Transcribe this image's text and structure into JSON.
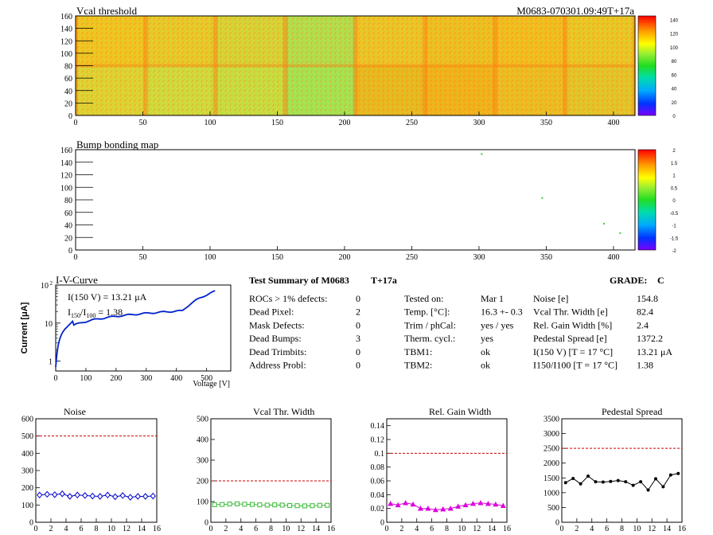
{
  "header": {
    "vcal_title": "Vcal threshold",
    "module_id": "M0683-070301.09:49T+17a",
    "bump_title": "Bump bonding map"
  },
  "maps": {
    "x_ticks": [
      "0",
      "50",
      "100",
      "150",
      "200",
      "250",
      "300",
      "350",
      "400"
    ],
    "y_ticks": [
      "0",
      "20",
      "40",
      "60",
      "80",
      "100",
      "120",
      "140",
      "160"
    ],
    "vcal_palette_ticks": [
      "0",
      "20",
      "40",
      "60",
      "80",
      "100",
      "120",
      "140"
    ],
    "bump_palette_ticks": [
      "-2",
      "-1.5",
      "-1",
      "-0.5",
      "0",
      "0.5",
      "1",
      "1.5",
      "2"
    ],
    "roc_fills_top_row": [
      "#f2c625",
      "#eacb2d",
      "#d9d43a",
      "#b3e050",
      "#eec62a",
      "#f0c024",
      "#f4be22",
      "#ecc828"
    ],
    "roc_fills_bottom_row": [
      "#e0d437",
      "#d2dc40",
      "#c9df44",
      "#a4e556",
      "#eaba22",
      "#f3b31d",
      "#efbd25",
      "#e6c52c"
    ],
    "bump_points": [
      {
        "x": 302,
        "y": 153
      },
      {
        "x": 347,
        "y": 83
      },
      {
        "x": 393,
        "y": 42
      },
      {
        "x": 405,
        "y": 27
      }
    ]
  },
  "iv": {
    "title": "I-V-Curve",
    "ylabel": "Current [μA]",
    "xlabel": "Voltage [V]",
    "annotation_1": "I(150 V) = 13.21 μA",
    "annotation_2_pre": "I",
    "annotation_2_sub1": "150",
    "annotation_2_mid": "/I",
    "annotation_2_sub2": "100",
    "annotation_2_post": " =  1.38",
    "x_ticks": [
      "0",
      "100",
      "200",
      "300",
      "400",
      "500"
    ],
    "y_ticks": [
      "1",
      "10",
      "10"
    ],
    "y_top_exp": "2"
  },
  "summary": {
    "title": "Test Summary of M0683",
    "temp_tag": "T+17a",
    "grade_label": "GRADE:",
    "grade": "C",
    "col1": [
      {
        "label": "ROCs > 1% defects:",
        "value": "0"
      },
      {
        "label": "Dead Pixel:",
        "value": "2"
      },
      {
        "label": "Mask Defects:",
        "value": "0"
      },
      {
        "label": "Dead Bumps:",
        "value": "3"
      },
      {
        "label": "Dead Trimbits:",
        "value": "0"
      },
      {
        "label": "Address Probl:",
        "value": "0"
      }
    ],
    "col2": [
      {
        "label": "Tested on:",
        "value": "Mar 1"
      },
      {
        "label": "Temp. [°C]:",
        "value": "16.3 +- 0.3"
      },
      {
        "label": "Trim / phCal:",
        "value": "yes / yes"
      },
      {
        "label": "Therm. cycl.:",
        "value": "yes"
      },
      {
        "label": "TBM1:",
        "value": "ok"
      },
      {
        "label": "TBM2:",
        "value": "ok"
      }
    ],
    "col3": [
      {
        "label": "Noise [e]",
        "value": "154.8"
      },
      {
        "label": "Vcal Thr. Width [e]",
        "value": "82.4"
      },
      {
        "label": "Rel. Gain Width [%]",
        "value": "2.4"
      },
      {
        "label": "Pedestal Spread [e]",
        "value": "1372.2"
      },
      {
        "label": "I(150 V) [T = 17 °C]",
        "value": "13.21 μA"
      },
      {
        "label": "I150/I100  [T = 17 °C]",
        "value": "1.38"
      }
    ]
  },
  "chart_data": [
    {
      "type": "line",
      "title": "Noise",
      "x": [
        0,
        1,
        2,
        3,
        4,
        5,
        6,
        7,
        8,
        9,
        10,
        11,
        12,
        13,
        14,
        15
      ],
      "values": [
        158,
        162,
        160,
        165,
        150,
        158,
        155,
        152,
        150,
        158,
        148,
        155,
        145,
        150,
        150,
        152
      ],
      "ylim": [
        0,
        600
      ],
      "xlim": [
        0,
        16
      ],
      "y_ticks": [
        "0",
        "100",
        "200",
        "300",
        "400",
        "500",
        "600"
      ],
      "x_ticks": [
        "0",
        "2",
        "4",
        "6",
        "8",
        "10",
        "12",
        "14",
        "16"
      ],
      "limit_line": 500,
      "color": "#0000cc",
      "marker": "diamond"
    },
    {
      "type": "line",
      "title": "Vcal Thr. Width",
      "x": [
        0,
        1,
        2,
        3,
        4,
        5,
        6,
        7,
        8,
        9,
        10,
        11,
        12,
        13,
        14,
        15
      ],
      "values": [
        85,
        86,
        88,
        89,
        87,
        86,
        84,
        83,
        84,
        83,
        81,
        80,
        79,
        80,
        82,
        82
      ],
      "ylim": [
        0,
        500
      ],
      "xlim": [
        0,
        16
      ],
      "y_ticks": [
        "0",
        "100",
        "200",
        "300",
        "400",
        "500"
      ],
      "x_ticks": [
        "0",
        "2",
        "4",
        "6",
        "8",
        "10",
        "12",
        "14",
        "16"
      ],
      "limit_line": 200,
      "color": "#33bb33",
      "marker": "square"
    },
    {
      "type": "line",
      "title": "Rel. Gain Width",
      "x": [
        0,
        1,
        2,
        3,
        4,
        5,
        6,
        7,
        8,
        9,
        10,
        11,
        12,
        13,
        14,
        15
      ],
      "values": [
        0.027,
        0.025,
        0.028,
        0.026,
        0.02,
        0.02,
        0.018,
        0.019,
        0.02,
        0.023,
        0.025,
        0.027,
        0.028,
        0.027,
        0.026,
        0.024
      ],
      "ylim": [
        0,
        0.15
      ],
      "xlim": [
        0,
        16
      ],
      "y_ticks": [
        "0",
        "0.02",
        "0.04",
        "0.06",
        "0.08",
        "0.1",
        "0.12",
        "0.14"
      ],
      "x_ticks": [
        "0",
        "2",
        "4",
        "6",
        "8",
        "10",
        "12",
        "14",
        "16"
      ],
      "limit_line": 0.1,
      "color": "#dd00dd",
      "marker": "triangle"
    },
    {
      "type": "line",
      "title": "Pedestal Spread",
      "x": [
        0,
        1,
        2,
        3,
        4,
        5,
        6,
        7,
        8,
        9,
        10,
        11,
        12,
        13,
        14,
        15
      ],
      "values": [
        1340,
        1480,
        1300,
        1560,
        1370,
        1360,
        1380,
        1410,
        1370,
        1250,
        1370,
        1090,
        1470,
        1200,
        1600,
        1650
      ],
      "ylim": [
        0,
        3500
      ],
      "xlim": [
        0,
        16
      ],
      "y_ticks": [
        "0",
        "500",
        "1000",
        "1500",
        "2000",
        "2500",
        "3000",
        "3500"
      ],
      "x_ticks": [
        "0",
        "2",
        "4",
        "6",
        "8",
        "10",
        "12",
        "14",
        "16"
      ],
      "limit_line": 2500,
      "color": "#000000",
      "marker": "star"
    }
  ]
}
